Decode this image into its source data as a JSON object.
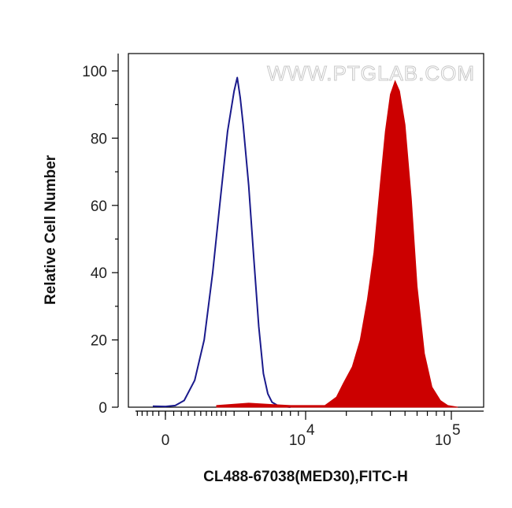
{
  "watermark": "WWW.PTGLAB.COM",
  "chart_data": {
    "type": "area",
    "title": "",
    "xlabel": "CL488-67038(MED30),FITC-H",
    "ylabel": "Relative Cell Number",
    "x_scale": "biexponential",
    "xlim": [
      -3000,
      150000
    ],
    "ylim": [
      0,
      100
    ],
    "y_ticks": [
      0,
      20,
      40,
      60,
      80,
      100
    ],
    "x_ticks": [
      {
        "value": 0,
        "base": "0",
        "exp": ""
      },
      {
        "value": 10000,
        "base": "10",
        "exp": "4"
      },
      {
        "value": 100000,
        "base": "10",
        "exp": "5"
      }
    ],
    "grid": false,
    "legend": "none",
    "series": [
      {
        "style": "outline",
        "color": "#1a1a8c",
        "x": [
          -500,
          0,
          300,
          600,
          1000,
          1400,
          1800,
          2200,
          2600,
          3000,
          3200,
          3400,
          3600,
          4000,
          4400,
          4800,
          5200,
          5600,
          6000,
          6500,
          7000,
          8000
        ],
        "y": [
          0.3,
          0.2,
          0.5,
          2,
          8,
          20,
          40,
          62,
          82,
          94,
          98,
          92,
          84,
          66,
          44,
          24,
          10,
          4,
          1.5,
          0.6,
          0.3,
          0
        ]
      },
      {
        "style": "filled",
        "color": "#cc0000",
        "x": [
          2000,
          4000,
          6000,
          8000,
          14000,
          17000,
          19000,
          22000,
          25000,
          28000,
          31000,
          34000,
          37000,
          40000,
          43000,
          46000,
          50000,
          55000,
          60000,
          67000,
          75000,
          85000,
          95000,
          110000
        ],
        "y": [
          0.5,
          1.2,
          0.8,
          0.5,
          0.5,
          3,
          7,
          12,
          20,
          32,
          46,
          65,
          82,
          93,
          97,
          94,
          84,
          62,
          36,
          16,
          6,
          2,
          0.5,
          0
        ]
      }
    ]
  }
}
